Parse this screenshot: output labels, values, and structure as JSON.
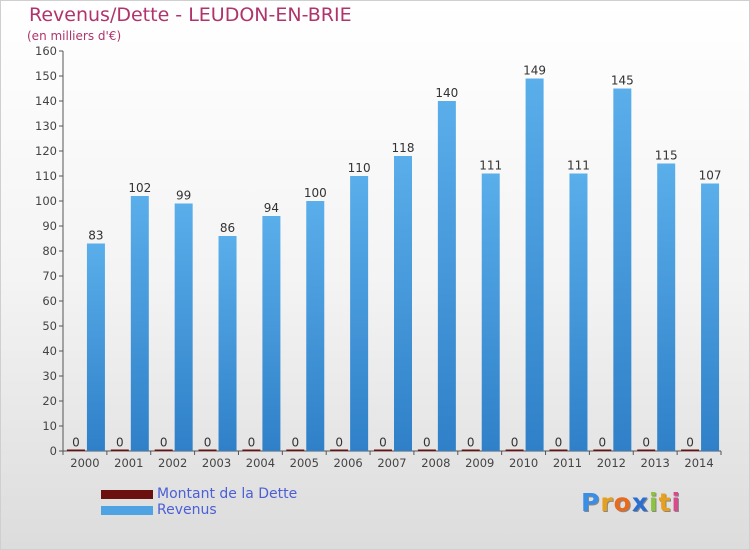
{
  "header": {
    "title": "Revenus/Dette - LEUDON-EN-BRIE",
    "subtitle": "(en milliers d'€)"
  },
  "chart_data": {
    "type": "bar",
    "categories": [
      "2000",
      "2001",
      "2002",
      "2003",
      "2004",
      "2005",
      "2006",
      "2007",
      "2008",
      "2009",
      "2010",
      "2011",
      "2012",
      "2013",
      "2014"
    ],
    "series": [
      {
        "name": "Montant de la Dette",
        "color": "#6b0f0f",
        "values": [
          0,
          0,
          0,
          0,
          0,
          0,
          0,
          0,
          0,
          0,
          0,
          0,
          0,
          0,
          0
        ]
      },
      {
        "name": "Revenus",
        "color": "#4fa3e3",
        "values": [
          83,
          102,
          99,
          86,
          94,
          100,
          110,
          118,
          140,
          111,
          149,
          111,
          145,
          115,
          107
        ]
      }
    ],
    "ylim": [
      0,
      160
    ],
    "ytick_step": 10,
    "grid": false,
    "legend_position": "bottom-left"
  },
  "legend": {
    "items": [
      {
        "label": "Montant de la Dette",
        "color": "#6b0f0f"
      },
      {
        "label": "Revenus",
        "color": "#4fa3e3"
      }
    ]
  },
  "logo": {
    "letters": [
      {
        "ch": "P",
        "color": "#3a8ee6"
      },
      {
        "ch": "r",
        "color": "#e8a01c"
      },
      {
        "ch": "o",
        "color": "#e86a1c"
      },
      {
        "ch": "x",
        "color": "#2a6fd0"
      },
      {
        "ch": "i",
        "color": "#8cc43c"
      },
      {
        "ch": "t",
        "color": "#e8a01c"
      },
      {
        "ch": "i",
        "color": "#d94a8c"
      }
    ]
  }
}
